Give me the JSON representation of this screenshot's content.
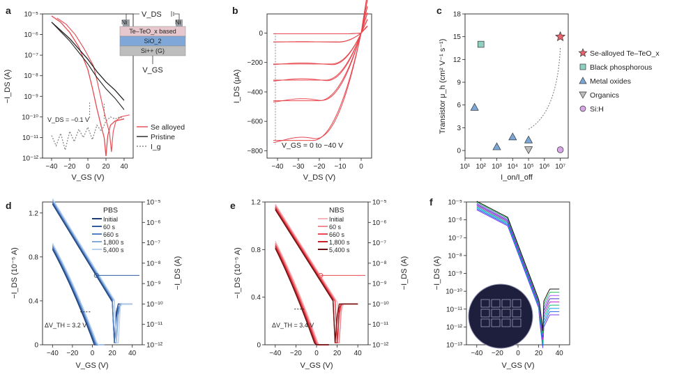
{
  "panels": {
    "a": {
      "label": "a",
      "xlabel": "V_GS (V)",
      "ylabel": "−I_DS (A)",
      "annotation": "V_DS = −0.1 V",
      "device_layers": [
        "V_DS",
        "Ni",
        "Te–TeO_x based",
        "SiO_2",
        "Si++ (G)",
        "V_GS"
      ]
    },
    "b": {
      "label": "b",
      "xlabel": "V_DS (V)",
      "ylabel": "I_DS (μA)",
      "annotation": "V_GS = 0 to −40 V"
    },
    "c": {
      "label": "c",
      "xlabel": "I_on/I_off",
      "ylabel": "Transistor μ_h (cm² V⁻¹ s⁻¹)"
    },
    "d": {
      "label": "d",
      "xlabel": "V_GS (V)",
      "ylabel_left": "−I_DS (10⁻⁵ A)",
      "ylabel_right": "−I_DS (A)",
      "legend_title": "PBS",
      "annotation": "ΔV_TH = 3.2 V"
    },
    "e": {
      "label": "e",
      "xlabel": "V_GS (V)",
      "ylabel_left": "−I_DS (10⁻⁵ A)",
      "ylabel_right": "−I_DS (A)",
      "legend_title": "NBS",
      "annotation": "ΔV_TH = 3.4 V"
    },
    "f": {
      "label": "f",
      "xlabel": "V_GS (V)",
      "ylabel": "−I_DS (A)"
    }
  },
  "chart_data": [
    {
      "panel": "a",
      "type": "line",
      "log_y": true,
      "xlim": [
        -50,
        50
      ],
      "ylim_exp": [
        -12,
        -5
      ],
      "x_ticks": [
        "−40",
        "−20",
        "0",
        "20",
        "40"
      ],
      "y_ticks": [
        "10⁻¹²",
        "10⁻¹¹",
        "10⁻¹⁰",
        "10⁻⁹",
        "10⁻⁸",
        "10⁻⁷",
        "10⁻⁶",
        "10⁻⁵"
      ],
      "series": [
        {
          "name": "Se alloyed",
          "color": "#e8474f",
          "style": "solid",
          "x": [
            -40,
            -30,
            -20,
            -10,
            0,
            5,
            10,
            15,
            18,
            20,
            22,
            25,
            30,
            40
          ],
          "log10": [
            -5.1,
            -5.4,
            -5.9,
            -6.6,
            -7.7,
            -8.6,
            -9.6,
            -10.5,
            -11.0,
            -11.9,
            -10.9,
            -10.4,
            -10.2,
            -10.1
          ]
        },
        {
          "name": "Pristine",
          "color": "#222222",
          "style": "solid",
          "x": [
            -40,
            -30,
            -20,
            -10,
            0,
            10,
            20,
            30,
            40
          ],
          "log10": [
            -5.4,
            -5.8,
            -6.2,
            -6.7,
            -7.2,
            -7.8,
            -8.3,
            -8.7,
            -9.2
          ]
        },
        {
          "name": "I_g",
          "color": "#888888",
          "style": "dotted",
          "x": [
            -40,
            -35,
            -30,
            -25,
            -20,
            -15,
            -10,
            -5,
            0,
            5,
            10,
            15,
            20,
            25,
            30,
            35,
            40
          ],
          "log10": [
            -10.9,
            -11.4,
            -10.8,
            -11.6,
            -10.7,
            -11.2,
            -10.6,
            -11.0,
            -10.5,
            -11.1,
            -10.4,
            -10.7,
            -10.2,
            -10.0,
            -10.1,
            -10.0,
            -10.1
          ]
        }
      ]
    },
    {
      "panel": "b",
      "type": "line",
      "xlim": [
        -45,
        5
      ],
      "ylim": [
        -850,
        130
      ],
      "x_ticks": [
        "−40",
        "−30",
        "−20",
        "−10",
        "0"
      ],
      "y_ticks": [
        "−800",
        "−600",
        "−400",
        "−200",
        "0"
      ],
      "series": [
        {
          "name": "",
          "color": "#e8474f",
          "vgs_sat": [
            -5,
            -60,
            -210,
            -320,
            -460,
            -730
          ]
        }
      ]
    },
    {
      "panel": "c",
      "type": "scatter",
      "xlim_exp": [
        1,
        7.5
      ],
      "ylim": [
        -1,
        18
      ],
      "x_ticks": [
        "10¹",
        "10²",
        "10³",
        "10⁴",
        "10⁵",
        "10⁶",
        "10⁷"
      ],
      "y_ticks": [
        "0",
        "3",
        "6",
        "9",
        "12",
        "15",
        "18"
      ],
      "series": [
        {
          "name": "Se-alloyed Te–TeO_x",
          "marker": "star",
          "color": "#e8636b",
          "points": [
            [
              7,
              15
            ]
          ]
        },
        {
          "name": "Black phosphorous",
          "marker": "square",
          "color": "#8fd1c0",
          "points": [
            [
              2,
              14
            ]
          ]
        },
        {
          "name": "Metal oxides",
          "marker": "triangle-up",
          "color": "#7aa7d8",
          "points": [
            [
              1.6,
              5.7
            ],
            [
              3,
              0.5
            ],
            [
              4,
              1.8
            ],
            [
              5,
              1.4
            ]
          ]
        },
        {
          "name": "Organics",
          "marker": "triangle-down",
          "color": "#bdbdbd",
          "points": [
            [
              5,
              0.1
            ]
          ]
        },
        {
          "name": "Si:H",
          "marker": "circle",
          "color": "#d6a6e6",
          "points": [
            [
              7,
              0.1
            ]
          ]
        }
      ]
    },
    {
      "panel": "d",
      "type": "line",
      "xlim": [
        -50,
        50
      ],
      "ylim": [
        0,
        1.3
      ],
      "x_ticks": [
        "−40",
        "−20",
        "0",
        "20",
        "40"
      ],
      "y_ticks": [
        "0",
        "0.4",
        "0.8",
        "1.2"
      ],
      "y2_ticks": [
        "10⁻¹²",
        "10⁻¹¹",
        "10⁻¹⁰",
        "10⁻⁹",
        "10⁻⁸",
        "10⁻⁷",
        "10⁻⁶",
        "10⁻⁵"
      ],
      "series": [
        {
          "name": "Initial",
          "color": "#1f3b73",
          "shift": 0
        },
        {
          "name": "60 s",
          "color": "#2f5b9e",
          "shift": 0.8
        },
        {
          "name": "660 s",
          "color": "#4f7fc0",
          "shift": 1.6
        },
        {
          "name": "1,800 s",
          "color": "#84a9d8",
          "shift": 2.4
        },
        {
          "name": "5,400 s",
          "color": "#b8d0ee",
          "shift": 3.2
        }
      ]
    },
    {
      "panel": "e",
      "type": "line",
      "xlim": [
        -50,
        50
      ],
      "ylim": [
        0,
        1.2
      ],
      "x_ticks": [
        "−40",
        "−20",
        "0",
        "20",
        "40"
      ],
      "y_ticks": [
        "0",
        "0.4",
        "0.8",
        "1.2"
      ],
      "y2_ticks": [
        "10⁻¹²",
        "10⁻¹¹",
        "10⁻¹⁰",
        "10⁻⁹",
        "10⁻⁸",
        "10⁻⁷",
        "10⁻⁶",
        "10⁻⁵"
      ],
      "series": [
        {
          "name": "Initial",
          "color": "#f4b6bd",
          "shift": 0
        },
        {
          "name": "60 s",
          "color": "#ee8a93",
          "shift": -0.85
        },
        {
          "name": "660 s",
          "color": "#e8474f",
          "shift": -1.7
        },
        {
          "name": "1,800 s",
          "color": "#c8202a",
          "shift": -2.55
        },
        {
          "name": "5,400 s",
          "color": "#6b1010",
          "shift": -3.4
        }
      ]
    },
    {
      "panel": "f",
      "type": "line",
      "log_y": true,
      "xlim": [
        -50,
        50
      ],
      "ylim_exp": [
        -13,
        -5
      ],
      "x_ticks": [
        "−40",
        "−20",
        "0",
        "20",
        "40"
      ],
      "y_ticks": [
        "10⁻¹³",
        "10⁻¹²",
        "10⁻¹¹",
        "10⁻¹⁰",
        "10⁻⁹",
        "10⁻⁸",
        "10⁻⁷",
        "10⁻⁶",
        "10⁻⁵"
      ],
      "series": [
        {
          "name": "",
          "colors": [
            "#7c3aed",
            "#2563eb",
            "#0ea5e9",
            "#10b981",
            "#c026d3",
            "#4338ca",
            "#a855f7",
            "#22c55e",
            "#111111"
          ]
        }
      ]
    }
  ]
}
